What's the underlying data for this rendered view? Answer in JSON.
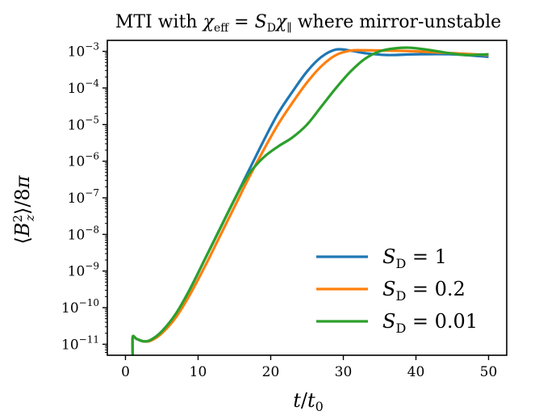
{
  "chart_data": {
    "type": "line",
    "title": "MTI with χeff = SDχ∥ where mirror-unstable",
    "xlabel": "t/t0",
    "ylabel": "⟨B²z⟩/8π",
    "xlim": [
      -2.5,
      52.5
    ],
    "ylim_log10": [
      -11.3,
      -2.7
    ],
    "yscale": "log",
    "grid": false,
    "legend_position": "lower-right",
    "x_ticks": [
      0,
      10,
      20,
      30,
      40,
      50
    ],
    "x_tick_labels": [
      "0",
      "10",
      "20",
      "30",
      "40",
      "50"
    ],
    "y_tick_exponents": [
      -11,
      -10,
      -9,
      -8,
      -7,
      -6,
      -5,
      -4,
      -3
    ],
    "series": [
      {
        "name": "SD = 1",
        "color": "#1f77b4",
        "x": [
          1.0,
          1.0,
          1.5,
          2.5,
          3.5,
          5,
          7,
          9,
          11,
          13,
          15,
          17,
          19,
          21,
          23,
          25,
          27,
          29,
          31,
          33,
          36,
          40,
          45,
          50
        ],
        "log10y": [
          -11.3,
          -10.8,
          -10.85,
          -10.92,
          -10.88,
          -10.65,
          -10.15,
          -9.45,
          -8.65,
          -7.85,
          -7.05,
          -6.25,
          -5.45,
          -4.7,
          -4.1,
          -3.55,
          -3.15,
          -2.95,
          -2.98,
          -3.05,
          -3.1,
          -3.08,
          -3.08,
          -3.15
        ]
      },
      {
        "name": "SD = 0.2",
        "color": "#ff7f0e",
        "x": [
          1.0,
          1.0,
          1.5,
          2.5,
          3.5,
          5,
          7,
          9,
          11,
          13,
          15,
          17,
          19,
          21,
          23,
          25,
          27,
          29,
          31,
          33,
          36,
          40,
          45,
          50
        ],
        "log10y": [
          -11.3,
          -10.8,
          -10.85,
          -10.92,
          -10.9,
          -10.7,
          -10.25,
          -9.6,
          -8.85,
          -8.05,
          -7.25,
          -6.45,
          -5.7,
          -5.0,
          -4.4,
          -3.85,
          -3.4,
          -3.1,
          -2.98,
          -2.97,
          -2.98,
          -3.0,
          -3.05,
          -3.1
        ]
      },
      {
        "name": "SD = 0.01",
        "color": "#2ca02c",
        "x": [
          1.0,
          1.0,
          1.5,
          2.5,
          3.5,
          5,
          7,
          9,
          11,
          13,
          15,
          17,
          19,
          21,
          23,
          25,
          27,
          29,
          31,
          33,
          35,
          37,
          39,
          41,
          43,
          45,
          47,
          50
        ],
        "log10y": [
          -11.3,
          -10.8,
          -10.85,
          -10.92,
          -10.88,
          -10.65,
          -10.15,
          -9.45,
          -8.65,
          -7.85,
          -7.05,
          -6.35,
          -5.9,
          -5.6,
          -5.35,
          -5.0,
          -4.5,
          -4.0,
          -3.55,
          -3.2,
          -3.0,
          -2.92,
          -2.9,
          -2.94,
          -3.0,
          -3.06,
          -3.1,
          -3.08
        ]
      }
    ]
  }
}
